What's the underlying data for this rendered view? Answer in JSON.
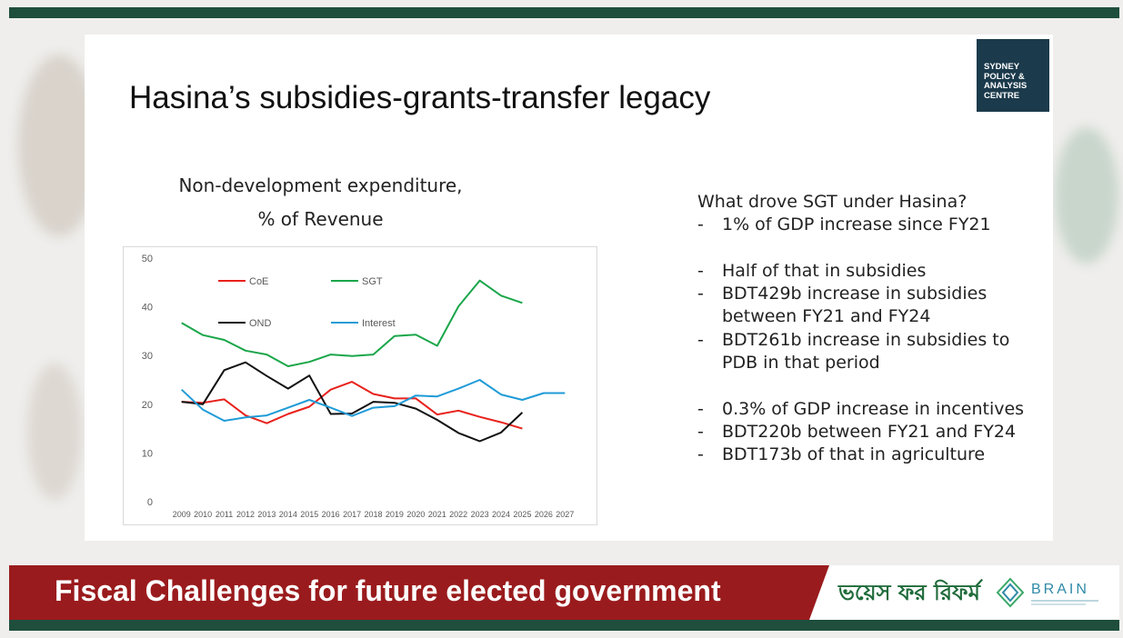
{
  "slide": {
    "title": "Hasina’s subsidies-grants-transfer legacy",
    "logo_lines": [
      "SYDNEY",
      "POLICY &",
      "ANALYSIS",
      "CENTRE"
    ],
    "chart_title_lines": [
      "Non-development expenditure,",
      "% of Revenue"
    ],
    "right_text": [
      {
        "type": "heading",
        "text": "What drove SGT under Hasina?"
      },
      {
        "type": "bullet",
        "dash": "-",
        "text": "1% of GDP increase since FY21"
      },
      {
        "type": "gap"
      },
      {
        "type": "bullet",
        "dash": "-",
        "text": "Half of that in subsidies"
      },
      {
        "type": "bullet",
        "dash": "-",
        "text": "BDT429b increase in subsidies"
      },
      {
        "type": "cont",
        "text": "between FY21 and FY24"
      },
      {
        "type": "bullet",
        "dash": "-",
        "text": "BDT261b increase in subsidies to"
      },
      {
        "type": "cont",
        "text": "PDB in that period"
      },
      {
        "type": "gap"
      },
      {
        "type": "bullet",
        "dash": "-",
        "text": "0.3% of GDP increase in incentives"
      },
      {
        "type": "bullet",
        "dash": "-",
        "text": "BDT220b between FY21 and FY24"
      },
      {
        "type": "bullet",
        "dash": "-",
        "text": "BDT173b of that in agriculture"
      }
    ]
  },
  "footer": {
    "title": "Fiscal Challenges for future elected government",
    "logo_bangla": "ভয়েস ফর রিফর্ম",
    "logo_brain": "BRAIN"
  },
  "colors": {
    "CoE": "#e8211c",
    "SGT": "#1aa64a",
    "OND": "#111111",
    "Interest": "#1f9bd7",
    "bar_green": "#1f4e3d",
    "band_red": "#9a1b1d"
  },
  "chart_data": {
    "type": "line",
    "x": [
      "2009",
      "2010",
      "2011",
      "2012",
      "2013",
      "2014",
      "2015",
      "2016",
      "2017",
      "2018",
      "2019",
      "2020",
      "2021",
      "2022",
      "2023",
      "2024",
      "2025",
      "2026",
      "2027"
    ],
    "ylim": [
      0,
      50
    ],
    "yticks": [
      0,
      10,
      20,
      30,
      40,
      50
    ],
    "grid": false,
    "legend": "top-left, inside plot",
    "series": [
      {
        "name": "CoE",
        "values": [
          20.5,
          20.3,
          21.0,
          17.7,
          16.1,
          18.0,
          19.5,
          23.0,
          24.6,
          22.1,
          21.2,
          21.2,
          17.9,
          18.7,
          17.4,
          16.3,
          15.0,
          null,
          null
        ]
      },
      {
        "name": "SGT",
        "values": [
          36.7,
          34.2,
          33.2,
          31.0,
          30.2,
          27.8,
          28.7,
          30.2,
          29.9,
          30.2,
          34.0,
          34.3,
          32.0,
          40.1,
          45.4,
          42.3,
          40.8,
          null,
          null
        ]
      },
      {
        "name": "OND",
        "values": [
          20.5,
          20.0,
          27.0,
          28.6,
          25.8,
          23.2,
          25.9,
          18.0,
          18.1,
          20.5,
          20.3,
          19.1,
          16.8,
          14.1,
          12.4,
          14.2,
          18.3,
          null,
          null
        ]
      },
      {
        "name": "Interest",
        "values": [
          23.0,
          18.9,
          16.6,
          17.3,
          17.7,
          19.3,
          20.9,
          19.3,
          17.6,
          19.3,
          19.6,
          21.8,
          21.6,
          23.2,
          25.0,
          22.0,
          20.9,
          22.3,
          22.3
        ]
      }
    ]
  }
}
